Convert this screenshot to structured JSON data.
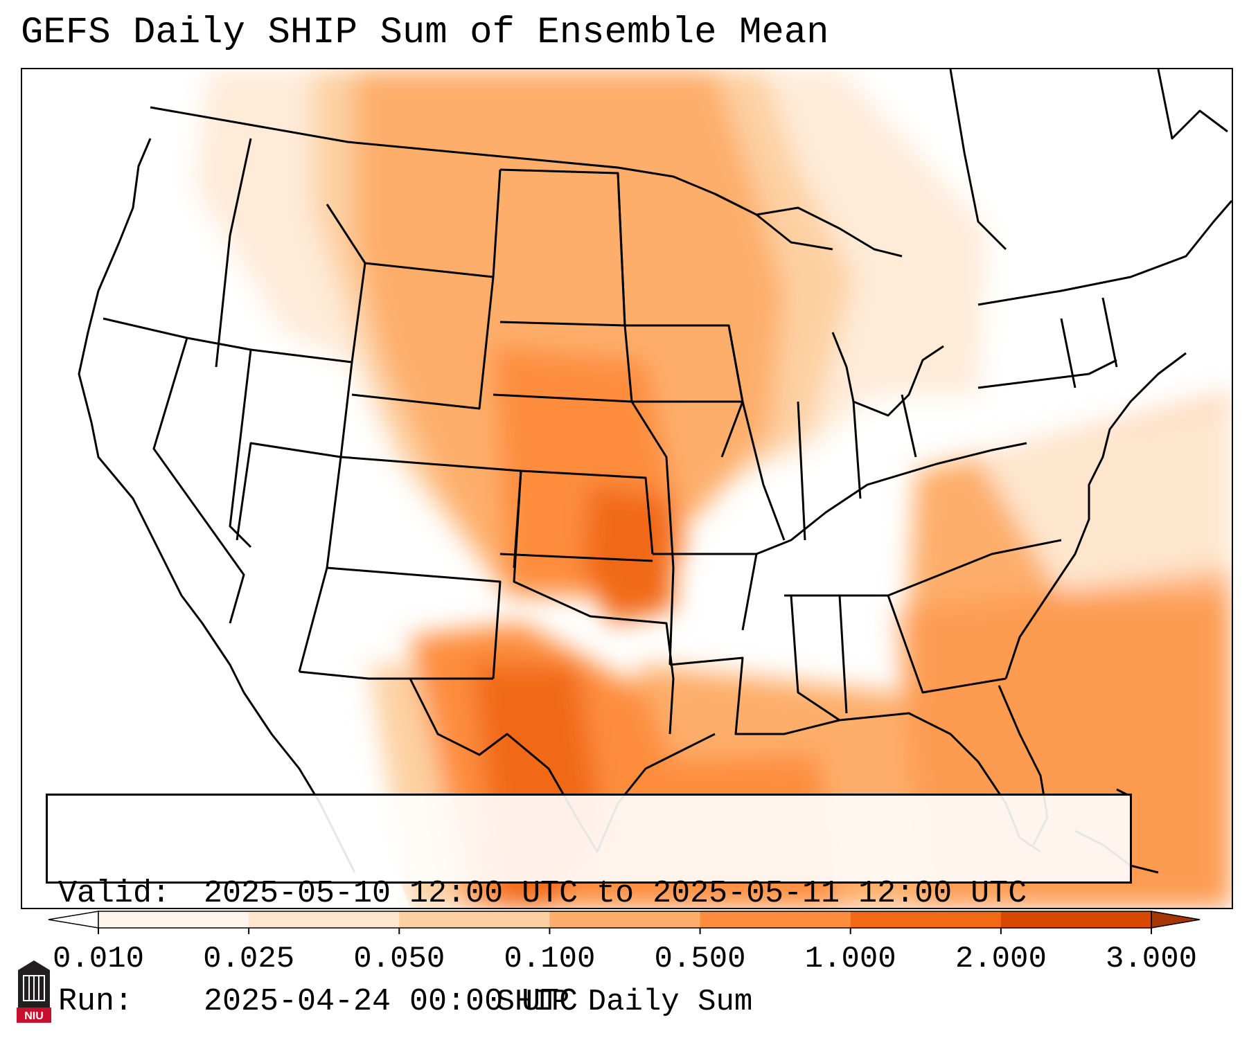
{
  "title": "GEFS Daily SHIP Sum of Ensemble Mean",
  "info": {
    "valid_label": "Valid:",
    "valid_value": "2025-05-10 12:00 UTC to 2025-05-11 12:00 UTC",
    "run_label": "Run:",
    "run_value": "2025-04-24 00:00 UTC"
  },
  "colorbar": {
    "label": "SHIP Daily Sum",
    "ticks": [
      "0.010",
      "0.025",
      "0.050",
      "0.100",
      "0.500",
      "1.000",
      "2.000",
      "3.000"
    ],
    "colors": [
      "#fff5eb",
      "#fee6ce",
      "#fdd0a2",
      "#fdae6b",
      "#fd8d3c",
      "#f16913",
      "#d94801",
      "#a63603"
    ],
    "extend": "both"
  },
  "logo": {
    "text": "NIU"
  }
}
